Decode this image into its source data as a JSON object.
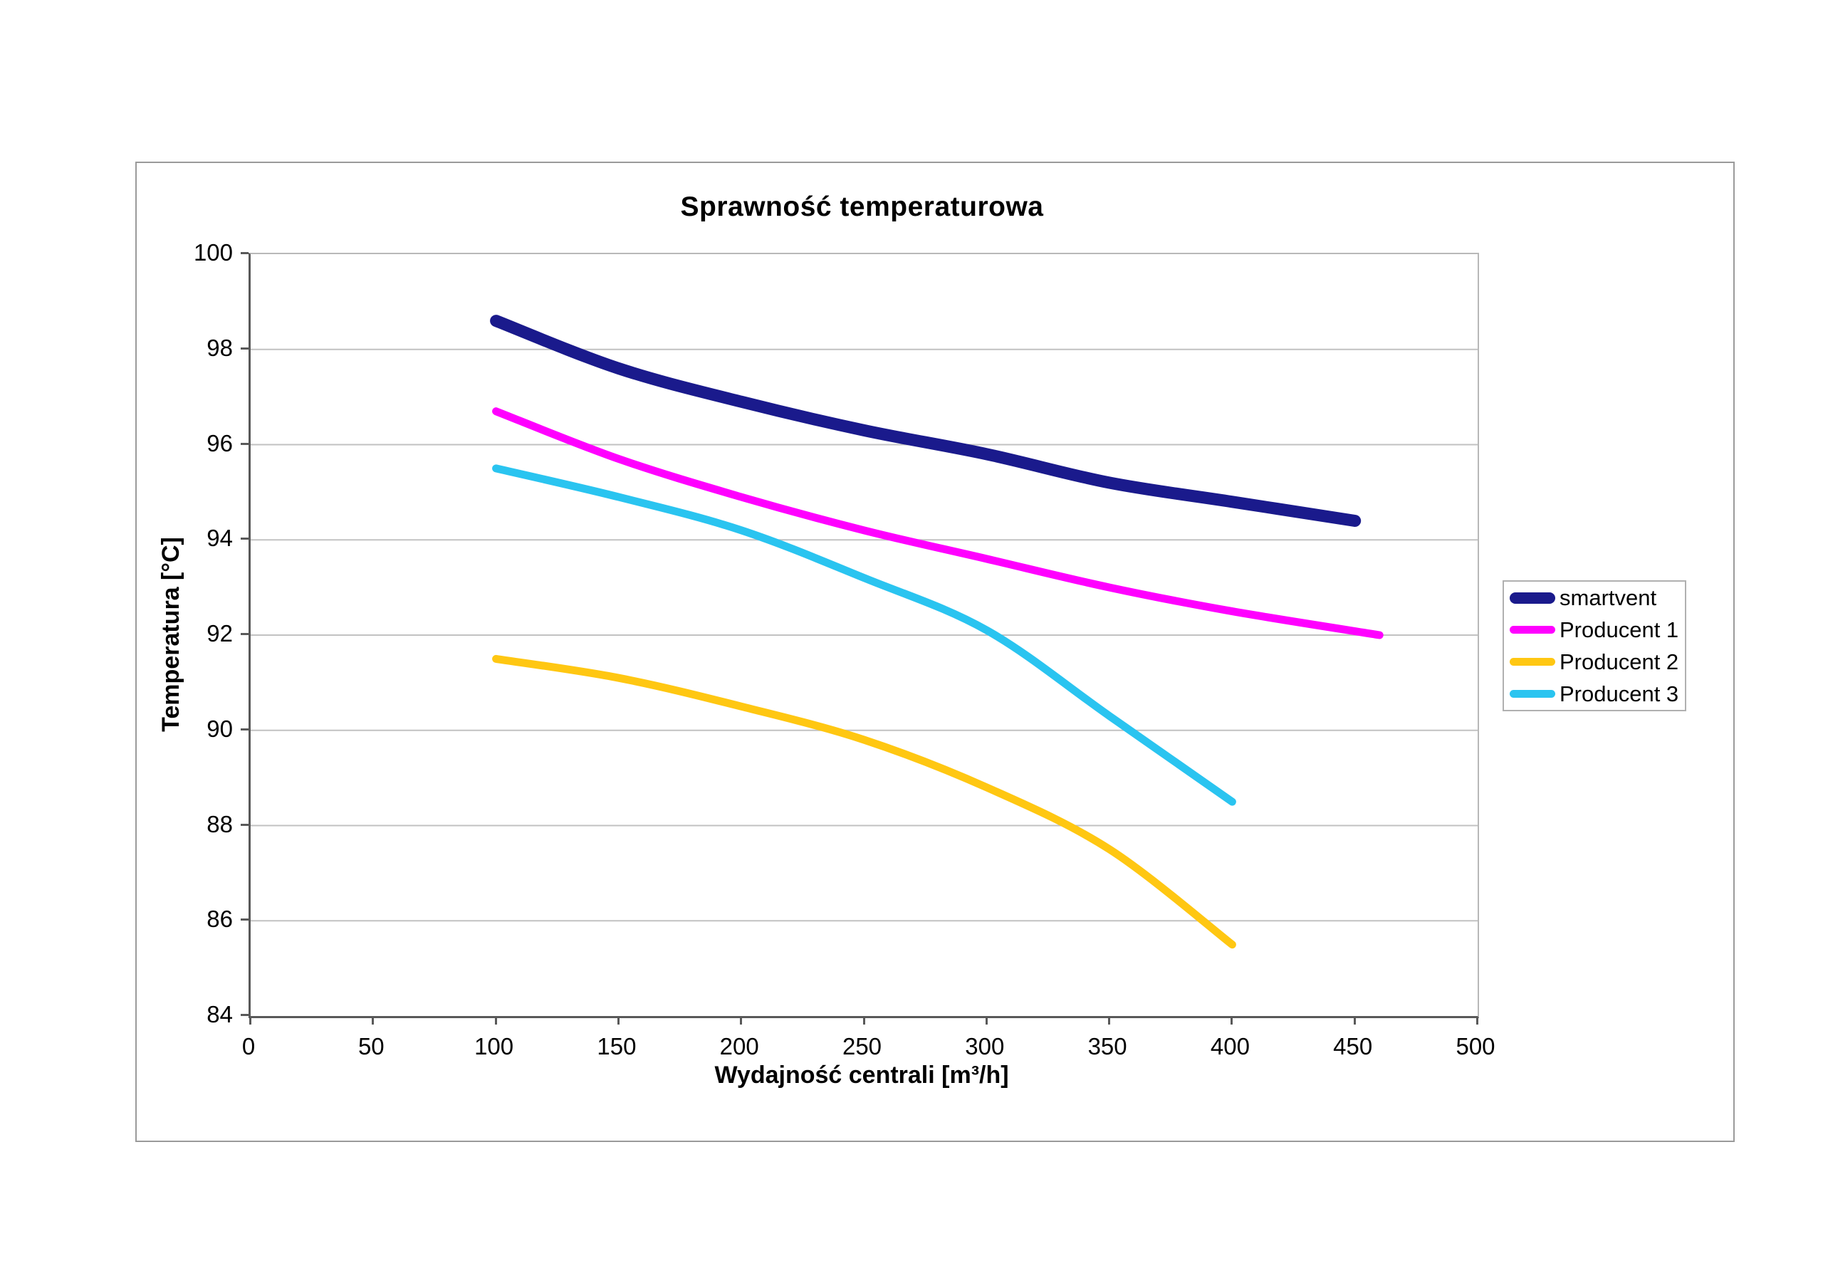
{
  "chart_data": {
    "type": "line",
    "title": "Sprawność temperaturowa",
    "xlabel": "Wydajność centrali [m³/h]",
    "ylabel": "Temperatura [°C]",
    "xlim": [
      0,
      500
    ],
    "ylim": [
      84,
      100
    ],
    "x_ticks": [
      0,
      50,
      100,
      150,
      200,
      250,
      300,
      350,
      400,
      450,
      500
    ],
    "y_ticks": [
      84,
      86,
      88,
      90,
      92,
      94,
      96,
      98,
      100
    ],
    "grid": "horizontal-only",
    "smoothed_lines": true,
    "legend_position": "right",
    "colors": {
      "grid": "#c2c2c2",
      "axis": "#595959",
      "plot_border": "#b8b8b8",
      "frame_border": "#9a9a9a",
      "text": "#000000"
    },
    "series": [
      {
        "name": "smartvent",
        "color": "#1a1a8c",
        "line_width": 17,
        "points": [
          [
            100,
            98.6
          ],
          [
            150,
            97.6
          ],
          [
            200,
            96.9
          ],
          [
            250,
            96.3
          ],
          [
            300,
            95.8
          ],
          [
            350,
            95.2
          ],
          [
            400,
            94.8
          ],
          [
            450,
            94.4
          ]
        ]
      },
      {
        "name": "Producent 1",
        "color": "#ff00ff",
        "line_width": 11,
        "points": [
          [
            100,
            96.7
          ],
          [
            150,
            95.7
          ],
          [
            200,
            94.9
          ],
          [
            250,
            94.2
          ],
          [
            300,
            93.6
          ],
          [
            350,
            93.0
          ],
          [
            400,
            92.5
          ],
          [
            460,
            92.0
          ]
        ]
      },
      {
        "name": "Producent 2",
        "color": "#ffc712",
        "line_width": 11,
        "points": [
          [
            100,
            91.5
          ],
          [
            150,
            91.1
          ],
          [
            200,
            90.5
          ],
          [
            250,
            89.8
          ],
          [
            300,
            88.8
          ],
          [
            350,
            87.5
          ],
          [
            400,
            85.5
          ]
        ]
      },
      {
        "name": "Producent 3",
        "color": "#2ac4f0",
        "line_width": 11,
        "points": [
          [
            100,
            95.5
          ],
          [
            150,
            94.9
          ],
          [
            200,
            94.2
          ],
          [
            250,
            93.2
          ],
          [
            300,
            92.1
          ],
          [
            350,
            90.3
          ],
          [
            400,
            88.5
          ]
        ]
      }
    ]
  }
}
